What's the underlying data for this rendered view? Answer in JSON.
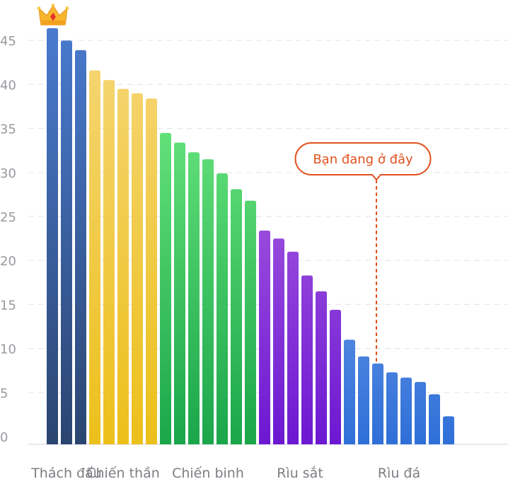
{
  "chart_data": {
    "type": "bar",
    "ylim": [
      0,
      47
    ],
    "yticks": [
      0,
      5,
      10,
      15,
      20,
      25,
      30,
      35,
      40,
      45
    ],
    "grid": "horizontal-dashed",
    "groups": [
      {
        "label": "Thách đấu",
        "color_top": "#4a7bd0",
        "color_bottom": "#2b4570",
        "values": [
          46.4,
          45.0,
          43.9
        ]
      },
      {
        "label": "Chiến thần",
        "color_top": "#f6d77a",
        "color_bottom": "#ecc01a",
        "values": [
          41.6,
          40.5,
          39.5,
          39.0,
          38.4
        ]
      },
      {
        "label": "Chiến binh",
        "color_top": "#7cf58a",
        "color_bottom": "#1aa64a",
        "values": [
          34.5,
          33.4,
          32.3,
          31.5,
          29.9,
          28.1,
          26.8
        ]
      },
      {
        "label": "Rìu sắt",
        "color_top": "#c27be6",
        "color_bottom": "#6c18d2",
        "values": [
          23.4,
          22.5,
          21.0,
          18.3,
          16.5,
          14.4
        ]
      },
      {
        "label": "Rìu đá",
        "color_top": "#a9c9f6",
        "color_bottom": "#2f6fd8",
        "values": [
          11.0,
          9.1,
          8.3,
          7.3,
          6.7,
          6.2,
          4.8,
          2.3
        ]
      }
    ],
    "top_marker": {
      "icon": "crown-icon",
      "bar_index": 0
    },
    "callout": {
      "text": "Bạn đang ở đây",
      "bar_index": 23,
      "color": "#e0521f"
    }
  }
}
